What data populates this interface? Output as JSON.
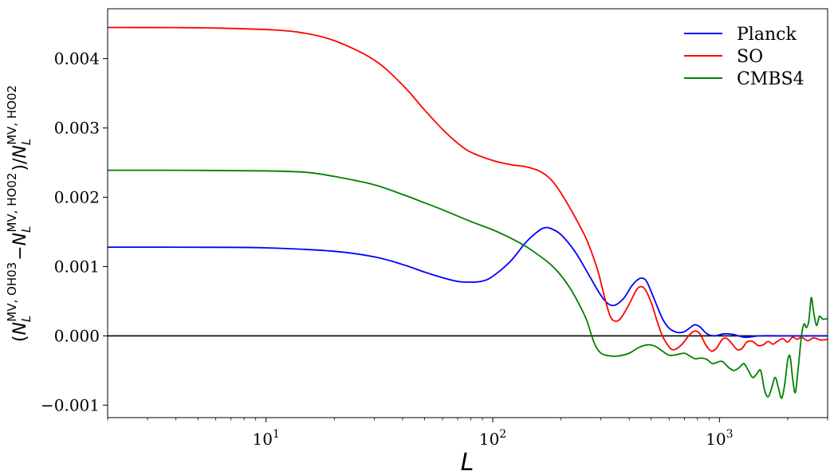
{
  "chart_data": {
    "type": "line",
    "xscale": "log",
    "xlim": [
      2,
      3000
    ],
    "ylim": [
      -0.00118,
      0.00472
    ],
    "xlabel": "L",
    "ylabel": "(N_L^{MV,OH03} − N_L^{MV,HO02})/N_L^{MV,HO02}",
    "ylabel_parts": {
      "open": "(",
      "sym1": "N",
      "sub1": "L",
      "sup1": "MV, OH03",
      "minus": "−",
      "sym2": "N",
      "sub2": "L",
      "sup2": "MV, HO02",
      "close": ")/",
      "sym3": "N",
      "sub3": "L",
      "sup3": "MV, HO02"
    },
    "x_ticks": [
      {
        "value": 10,
        "base": "10",
        "exp": "1"
      },
      {
        "value": 100,
        "base": "10",
        "exp": "2"
      },
      {
        "value": 1000,
        "base": "10",
        "exp": "3"
      }
    ],
    "y_ticks": [
      {
        "value": -0.001,
        "label": "−0.001"
      },
      {
        "value": 0.0,
        "label": "0.000"
      },
      {
        "value": 0.001,
        "label": "0.001"
      },
      {
        "value": 0.002,
        "label": "0.002"
      },
      {
        "value": 0.003,
        "label": "0.003"
      },
      {
        "value": 0.004,
        "label": "0.004"
      }
    ],
    "reference_line": {
      "y": 0.0,
      "color": "#000000"
    },
    "legend": {
      "position": "top-right"
    },
    "series": [
      {
        "name": "Planck",
        "color": "#0000ff",
        "points": [
          [
            2,
            0.00128
          ],
          [
            5,
            0.001278
          ],
          [
            10,
            0.00127
          ],
          [
            20,
            0.00122
          ],
          [
            30,
            0.00114
          ],
          [
            40,
            0.00103
          ],
          [
            50,
            0.00092
          ],
          [
            60,
            0.00084
          ],
          [
            70,
            0.000785
          ],
          [
            80,
            0.000775
          ],
          [
            90,
            0.00079
          ],
          [
            100,
            0.00086
          ],
          [
            120,
            0.00108
          ],
          [
            140,
            0.00135
          ],
          [
            160,
            0.00152
          ],
          [
            170,
            0.00156
          ],
          [
            180,
            0.00155
          ],
          [
            200,
            0.00146
          ],
          [
            230,
            0.00122
          ],
          [
            260,
            0.00093
          ],
          [
            290,
            0.00066
          ],
          [
            310,
            0.00052
          ],
          [
            330,
            0.000445
          ],
          [
            350,
            0.00045
          ],
          [
            380,
            0.00055
          ],
          [
            410,
            0.00072
          ],
          [
            440,
            0.00082
          ],
          [
            460,
            0.00083
          ],
          [
            480,
            0.00077
          ],
          [
            520,
            0.0005
          ],
          [
            560,
            0.00025
          ],
          [
            600,
            0.00011
          ],
          [
            650,
            5e-05
          ],
          [
            700,
            6e-05
          ],
          [
            750,
            0.00013
          ],
          [
            780,
            0.00016
          ],
          [
            820,
            0.00013
          ],
          [
            880,
            3e-05
          ],
          [
            950,
            0.0
          ],
          [
            1050,
            3e-05
          ],
          [
            1150,
            2e-05
          ],
          [
            1300,
            -2e-05
          ],
          [
            1500,
            0.0
          ],
          [
            1800,
            0.0
          ],
          [
            2200,
            0.0
          ],
          [
            3000,
            0.0
          ]
        ]
      },
      {
        "name": "SO",
        "color": "#ff0000",
        "points": [
          [
            2,
            0.00445
          ],
          [
            4,
            0.004448
          ],
          [
            6,
            0.004442
          ],
          [
            10,
            0.00442
          ],
          [
            14,
            0.00438
          ],
          [
            20,
            0.00426
          ],
          [
            30,
            0.00398
          ],
          [
            40,
            0.00362
          ],
          [
            50,
            0.00326
          ],
          [
            60,
            0.00298
          ],
          [
            70,
            0.00278
          ],
          [
            80,
            0.00265
          ],
          [
            100,
            0.00253
          ],
          [
            120,
            0.00247
          ],
          [
            140,
            0.00244
          ],
          [
            160,
            0.00238
          ],
          [
            180,
            0.00226
          ],
          [
            200,
            0.00206
          ],
          [
            230,
            0.00172
          ],
          [
            260,
            0.00138
          ],
          [
            290,
            0.00095
          ],
          [
            310,
            0.00058
          ],
          [
            330,
            0.00028
          ],
          [
            350,
            0.00021
          ],
          [
            370,
            0.00027
          ],
          [
            400,
            0.00046
          ],
          [
            430,
            0.00066
          ],
          [
            450,
            0.00071
          ],
          [
            470,
            0.00067
          ],
          [
            500,
            0.00048
          ],
          [
            530,
            0.00022
          ],
          [
            560,
            0.0
          ],
          [
            600,
            -0.00016
          ],
          [
            630,
            -0.0002
          ],
          [
            680,
            -0.00013
          ],
          [
            740,
            2e-05
          ],
          [
            780,
            7e-05
          ],
          [
            820,
            3e-05
          ],
          [
            870,
            -0.00013
          ],
          [
            920,
            -0.00022
          ],
          [
            970,
            -0.00018
          ],
          [
            1030,
            -5e-05
          ],
          [
            1080,
            -4e-05
          ],
          [
            1140,
            -0.00012
          ],
          [
            1200,
            -0.0002
          ],
          [
            1260,
            -0.00018
          ],
          [
            1320,
            -9e-05
          ],
          [
            1400,
            -8e-05
          ],
          [
            1480,
            -0.00014
          ],
          [
            1560,
            -0.00013
          ],
          [
            1640,
            -8e-05
          ],
          [
            1720,
            -0.00012
          ],
          [
            1800,
            -8e-05
          ],
          [
            1900,
            -4e-05
          ],
          [
            2000,
            -9e-05
          ],
          [
            2100,
            -2e-05
          ],
          [
            2200,
            -5e-05
          ],
          [
            2300,
            -2e-05
          ],
          [
            2450,
            -7e-05
          ],
          [
            2600,
            -3e-05
          ],
          [
            2800,
            -6e-05
          ],
          [
            3000,
            -5e-05
          ]
        ]
      },
      {
        "name": "CMBS4",
        "color": "#008000",
        "points": [
          [
            2,
            0.00239
          ],
          [
            5,
            0.002388
          ],
          [
            10,
            0.00238
          ],
          [
            15,
            0.00236
          ],
          [
            20,
            0.0023
          ],
          [
            30,
            0.00218
          ],
          [
            40,
            0.00204
          ],
          [
            50,
            0.00192
          ],
          [
            60,
            0.00182
          ],
          [
            80,
            0.00165
          ],
          [
            100,
            0.00153
          ],
          [
            120,
            0.00141
          ],
          [
            140,
            0.00129
          ],
          [
            160,
            0.00116
          ],
          [
            180,
            0.00103
          ],
          [
            200,
            0.00087
          ],
          [
            220,
            0.00068
          ],
          [
            240,
            0.00046
          ],
          [
            260,
            0.00022
          ],
          [
            280,
            -0.0001
          ],
          [
            300,
            -0.00025
          ],
          [
            330,
            -0.00029
          ],
          [
            360,
            -0.00029
          ],
          [
            400,
            -0.00025
          ],
          [
            440,
            -0.00017
          ],
          [
            480,
            -0.00013
          ],
          [
            520,
            -0.00015
          ],
          [
            560,
            -0.00022
          ],
          [
            600,
            -0.00028
          ],
          [
            650,
            -0.00027
          ],
          [
            700,
            -0.00025
          ],
          [
            740,
            -0.00029
          ],
          [
            780,
            -0.00033
          ],
          [
            830,
            -0.00032
          ],
          [
            880,
            -0.00034
          ],
          [
            930,
            -0.0004
          ],
          [
            980,
            -0.00038
          ],
          [
            1030,
            -0.00037
          ],
          [
            1100,
            -0.00046
          ],
          [
            1160,
            -0.0005
          ],
          [
            1220,
            -0.00046
          ],
          [
            1280,
            -0.0004
          ],
          [
            1330,
            -0.00048
          ],
          [
            1400,
            -0.0006
          ],
          [
            1460,
            -0.00055
          ],
          [
            1520,
            -0.0005
          ],
          [
            1580,
            -0.00078
          ],
          [
            1640,
            -0.00088
          ],
          [
            1700,
            -0.00075
          ],
          [
            1760,
            -0.0006
          ],
          [
            1820,
            -0.00075
          ],
          [
            1880,
            -0.0009
          ],
          [
            1940,
            -0.0007
          ],
          [
            2000,
            -0.00035
          ],
          [
            2050,
            -0.0003
          ],
          [
            2100,
            -0.0006
          ],
          [
            2160,
            -0.00082
          ],
          [
            2220,
            -0.0005
          ],
          [
            2300,
            0.0
          ],
          [
            2360,
            0.00017
          ],
          [
            2420,
            0.00012
          ],
          [
            2480,
            0.00022
          ],
          [
            2540,
            0.00055
          ],
          [
            2600,
            0.00035
          ],
          [
            2680,
            0.00015
          ],
          [
            2760,
            0.00028
          ],
          [
            2860,
            0.00024
          ],
          [
            3000,
            0.00025
          ]
        ]
      }
    ]
  }
}
